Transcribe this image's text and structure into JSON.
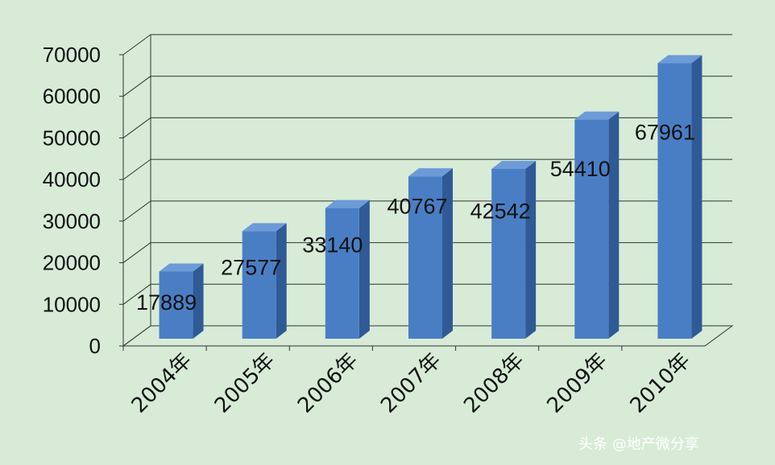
{
  "chart_data": {
    "type": "bar",
    "style": "3d-column",
    "categories": [
      "2004年",
      "2005年",
      "2006年",
      "2007年",
      "2008年",
      "2009年",
      "2010年"
    ],
    "values": [
      17889,
      27577,
      33140,
      40767,
      42542,
      54410,
      67961
    ],
    "data_labels": [
      "17889",
      "27577",
      "33140",
      "40767",
      "42542",
      "54410",
      "67961"
    ],
    "ylim": [
      0,
      70000
    ],
    "yticks": [
      0,
      10000,
      20000,
      30000,
      40000,
      50000,
      60000,
      70000
    ],
    "ytick_labels": [
      "0",
      "10000",
      "20000",
      "30000",
      "40000",
      "50000",
      "60000",
      "70000"
    ],
    "grid": true,
    "legend": "none",
    "colors": {
      "bar_front": "#4a7ec4",
      "bar_side": "#2f5a96",
      "bar_top": "#6d9bd8",
      "background": "#d7ebd7",
      "grid": "#333333"
    }
  },
  "watermark": {
    "text": "头条 @地产微分享"
  }
}
